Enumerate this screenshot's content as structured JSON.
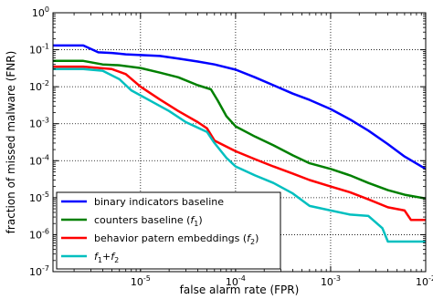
{
  "chart_data": {
    "type": "line",
    "xlabel": "false alarm rate (FPR)",
    "ylabel": "fraction of missed malware (FNR)",
    "x_scale": "log",
    "y_scale": "log",
    "xlim": [
      1.2e-06,
      0.01
    ],
    "ylim": [
      1e-07,
      1
    ],
    "grid": true,
    "legend_position": "lower-left",
    "x_ticks": [
      {
        "value": 1e-05,
        "base": "10",
        "exp": "-5"
      },
      {
        "value": 0.0001,
        "base": "10",
        "exp": "-4"
      },
      {
        "value": 0.001,
        "base": "10",
        "exp": "-3"
      },
      {
        "value": 0.01,
        "base": "10",
        "exp": "-2"
      }
    ],
    "y_ticks": [
      {
        "value": 1e-07,
        "base": "10",
        "exp": "-7"
      },
      {
        "value": 1e-06,
        "base": "10",
        "exp": "-6"
      },
      {
        "value": 1e-05,
        "base": "10",
        "exp": "-5"
      },
      {
        "value": 0.0001,
        "base": "10",
        "exp": "-4"
      },
      {
        "value": 0.001,
        "base": "10",
        "exp": "-3"
      },
      {
        "value": 0.01,
        "base": "10",
        "exp": "-2"
      },
      {
        "value": 0.1,
        "base": "10",
        "exp": "-1"
      },
      {
        "value": 1,
        "base": "10",
        "exp": "0"
      }
    ],
    "series": [
      {
        "name": "binary indicators baseline",
        "legend": {
          "text": "binary indicators baseline"
        },
        "color": "#0000ff",
        "x": [
          1.2e-06,
          2.5e-06,
          3.6e-06,
          5e-06,
          7e-06,
          1e-05,
          1.6e-05,
          2.5e-05,
          4e-05,
          6e-05,
          0.0001,
          0.00016,
          0.00025,
          0.0004,
          0.0006,
          0.001,
          0.0016,
          0.0025,
          0.004,
          0.006,
          0.01
        ],
        "y": [
          0.13,
          0.13,
          0.085,
          0.082,
          0.075,
          0.072,
          0.068,
          0.058,
          0.048,
          0.04,
          0.029,
          0.018,
          0.011,
          0.0065,
          0.0044,
          0.0025,
          0.0013,
          0.00065,
          0.00028,
          0.00013,
          6e-05
        ]
      },
      {
        "name": "counters baseline",
        "legend": {
          "text": "counters baseline (",
          "math": "f",
          "sub": "1",
          "tail": ")"
        },
        "color": "#008000",
        "x": [
          1.2e-06,
          2.5e-06,
          4e-06,
          6e-06,
          1e-05,
          1.6e-05,
          2.5e-05,
          4e-05,
          5.5e-05,
          6.5e-05,
          8e-05,
          0.0001,
          0.00016,
          0.00025,
          0.0004,
          0.0006,
          0.001,
          0.0016,
          0.0025,
          0.004,
          0.006,
          0.01
        ],
        "y": [
          0.05,
          0.05,
          0.04,
          0.038,
          0.032,
          0.024,
          0.018,
          0.011,
          0.0085,
          0.0042,
          0.0016,
          0.00085,
          0.00045,
          0.00026,
          0.00014,
          8.5e-05,
          6e-05,
          4e-05,
          2.5e-05,
          1.6e-05,
          1.2e-05,
          9.5e-06
        ]
      },
      {
        "name": "behavior patern embeddings",
        "legend": {
          "text": "behavior patern embeddings (",
          "math": "f",
          "sub": "2",
          "tail": ")"
        },
        "color": "#ff0000",
        "x": [
          1.2e-06,
          2.5e-06,
          5e-06,
          7e-06,
          1e-05,
          1.6e-05,
          2.5e-05,
          4e-05,
          5e-05,
          6e-05,
          0.0001,
          0.00016,
          0.00025,
          0.0004,
          0.0006,
          0.001,
          0.0016,
          0.0025,
          0.004,
          0.006,
          0.007,
          0.01
        ],
        "y": [
          0.035,
          0.035,
          0.03,
          0.022,
          0.01,
          0.0045,
          0.0022,
          0.0011,
          0.00075,
          0.00035,
          0.00018,
          0.00011,
          7e-05,
          4.5e-05,
          3e-05,
          2e-05,
          1.4e-05,
          9e-06,
          5.5e-06,
          4.5e-06,
          2.5e-06,
          2.5e-06
        ]
      },
      {
        "name": "f1+f2",
        "legend": {
          "math": "f",
          "sub": "1",
          "text": "+",
          "math2": "f",
          "sub2": "2"
        },
        "color": "#00bfbf",
        "x": [
          1.2e-06,
          2.5e-06,
          4e-06,
          6e-06,
          8e-06,
          1.2e-05,
          2e-05,
          3e-05,
          5e-05,
          6e-05,
          8e-05,
          0.0001,
          0.00016,
          0.00025,
          0.0004,
          0.0006,
          0.001,
          0.0016,
          0.0025,
          0.0035,
          0.004,
          0.01
        ],
        "y": [
          0.03,
          0.03,
          0.027,
          0.016,
          0.008,
          0.0045,
          0.0022,
          0.0011,
          0.0006,
          0.0003,
          0.00012,
          7e-05,
          4e-05,
          2.5e-05,
          1.3e-05,
          6e-06,
          4.5e-06,
          3.5e-06,
          3.2e-06,
          1.5e-06,
          6.5e-07,
          6.5e-07
        ]
      }
    ]
  }
}
